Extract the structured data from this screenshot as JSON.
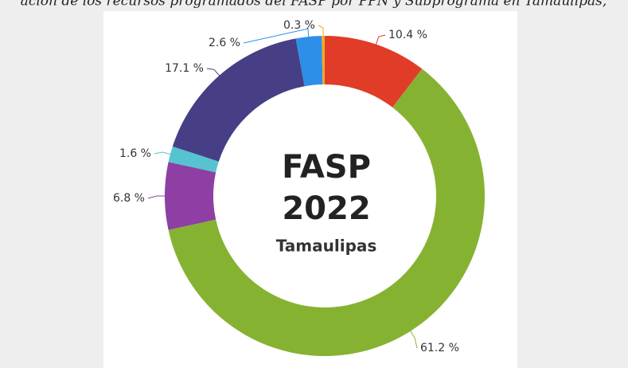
{
  "chart_data": {
    "type": "donut",
    "title": "ación de los recursos programados del FASP por PPN y Subprograma en Tamaulipas,",
    "center_text": [
      "FASP",
      "2022",
      "Tamaulipas"
    ],
    "values": [
      10.4,
      61.2,
      6.8,
      1.6,
      17.1,
      2.6,
      0.3
    ],
    "value_labels": [
      "10.4 %",
      "61.2 %",
      "6.8 %",
      "1.6 %",
      "17.1 %",
      "2.6 %",
      "0.3 %"
    ],
    "colors": [
      "#e03c28",
      "#86b232",
      "#8e3fa3",
      "#56c3d0",
      "#463f85",
      "#2e8fe8",
      "#f5a623"
    ]
  }
}
